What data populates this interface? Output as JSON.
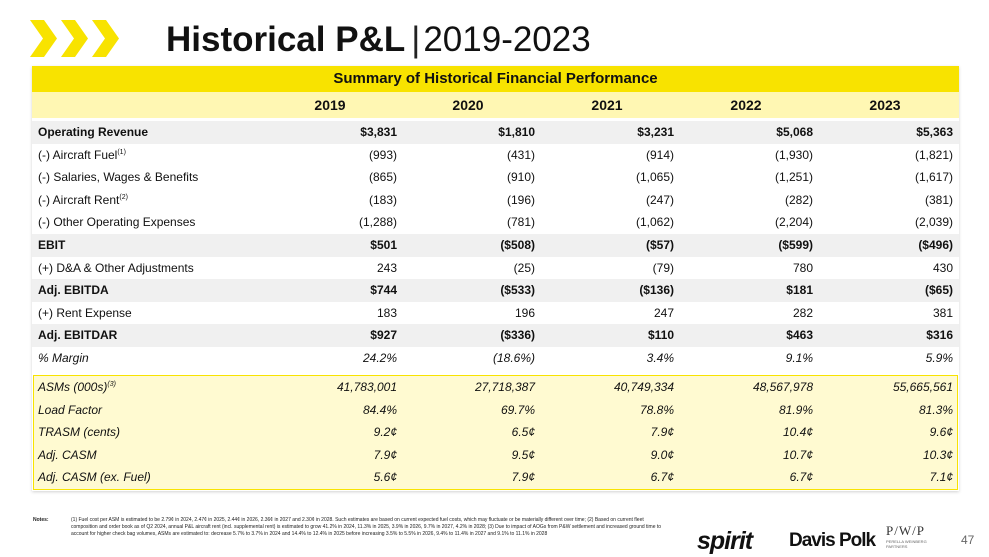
{
  "header": {
    "title_main": "Historical P&L",
    "title_sep": "|",
    "title_years": "2019-2023",
    "accent_color": "#f8e300"
  },
  "table": {
    "caption": "Summary of Historical Financial Performance",
    "years": [
      "2019",
      "2020",
      "2021",
      "2022",
      "2023"
    ],
    "rows": [
      {
        "label": "Operating Revenue",
        "sup": "",
        "values": [
          "$3,831",
          "$1,810",
          "$3,231",
          "$5,068",
          "$5,363"
        ]
      },
      {
        "label": "(-) Aircraft Fuel",
        "sup": "(1)",
        "values": [
          "(993)",
          "(431)",
          "(914)",
          "(1,930)",
          "(1,821)"
        ]
      },
      {
        "label": "(-) Salaries, Wages & Benefits",
        "sup": "",
        "values": [
          "(865)",
          "(910)",
          "(1,065)",
          "(1,251)",
          "(1,617)"
        ]
      },
      {
        "label": "(-) Aircraft Rent",
        "sup": "(2)",
        "values": [
          "(183)",
          "(196)",
          "(247)",
          "(282)",
          "(381)"
        ]
      },
      {
        "label": "(-) Other Operating Expenses",
        "sup": "",
        "values": [
          "(1,288)",
          "(781)",
          "(1,062)",
          "(2,204)",
          "(2,039)"
        ]
      },
      {
        "label": "EBIT",
        "sup": "",
        "values": [
          "$501",
          "($508)",
          "($57)",
          "($599)",
          "($496)"
        ]
      },
      {
        "label": "(+) D&A & Other Adjustments",
        "sup": "",
        "values": [
          "243",
          "(25)",
          "(79)",
          "780",
          "430"
        ]
      },
      {
        "label": "Adj. EBITDA",
        "sup": "",
        "values": [
          "$744",
          "($533)",
          "($136)",
          "$181",
          "($65)"
        ]
      },
      {
        "label": "(+) Rent Expense",
        "sup": "",
        "values": [
          "183",
          "196",
          "247",
          "282",
          "381"
        ]
      },
      {
        "label": "Adj. EBITDAR",
        "sup": "",
        "values": [
          "$927",
          "($336)",
          "$110",
          "$463",
          "$316"
        ]
      },
      {
        "label": "% Margin",
        "sup": "",
        "values": [
          "24.2%",
          "(18.6%)",
          "3.4%",
          "9.1%",
          "5.9%"
        ]
      }
    ],
    "op_rows": [
      {
        "label": "ASMs (000s)",
        "sup": "(3)",
        "values": [
          "41,783,001",
          "27,718,387",
          "40,749,334",
          "48,567,978",
          "55,665,561"
        ]
      },
      {
        "label": "Load Factor",
        "sup": "",
        "values": [
          "84.4%",
          "69.7%",
          "78.8%",
          "81.9%",
          "81.3%"
        ]
      },
      {
        "label": "TRASM (cents)",
        "sup": "",
        "values": [
          "9.2¢",
          "6.5¢",
          "7.9¢",
          "10.4¢",
          "9.6¢"
        ]
      },
      {
        "label": "Adj. CASM",
        "sup": "",
        "values": [
          "7.9¢",
          "9.5¢",
          "9.0¢",
          "10.7¢",
          "10.3¢"
        ]
      },
      {
        "label": "Adj. CASM (ex. Fuel)",
        "sup": "",
        "values": [
          "5.6¢",
          "7.9¢",
          "6.7¢",
          "6.7¢",
          "7.1¢"
        ]
      }
    ]
  },
  "notes": {
    "label": "Notes:",
    "text": "(1) Fuel cost per ASM is estimated to be 2.79¢ in 2024, 2.47¢ in 2025, 2.44¢ in 2026, 2.36¢ in 2027 and 2.30¢ in 2028. Such estimates are based on current expected fuel costs, which may fluctuate or be materially different over time; (2) Based on current fleet composition and order book as of Q2 2024, annual P&L aircraft rent (incl. supplemental rent) is estimated to grow 41.2% in 2024, 11.3% in 2025, 3.9% in 2026, 9.7% in 2027, 4.2% in 2028; (3) Due to impact of AOGs from P&W settlement and increased ground time to account for higher check bag volumes, ASMs are estimated to: decrease 5.7% to 3.7% in 2024 and 14.4% to 12.4% in 2025 before increasing 3.5% to 5.5% in 2026, 9.4% to 11.4% in 2027 and 9.1% to 11.1% in 2028"
  },
  "footer": {
    "logo_spirit": "spirit",
    "logo_davispolk": "Davis Polk",
    "logo_pwp": "P/W/P",
    "logo_pwp_sub": "PERELLA WEINBERG PARTNERS",
    "page_number": "47"
  }
}
